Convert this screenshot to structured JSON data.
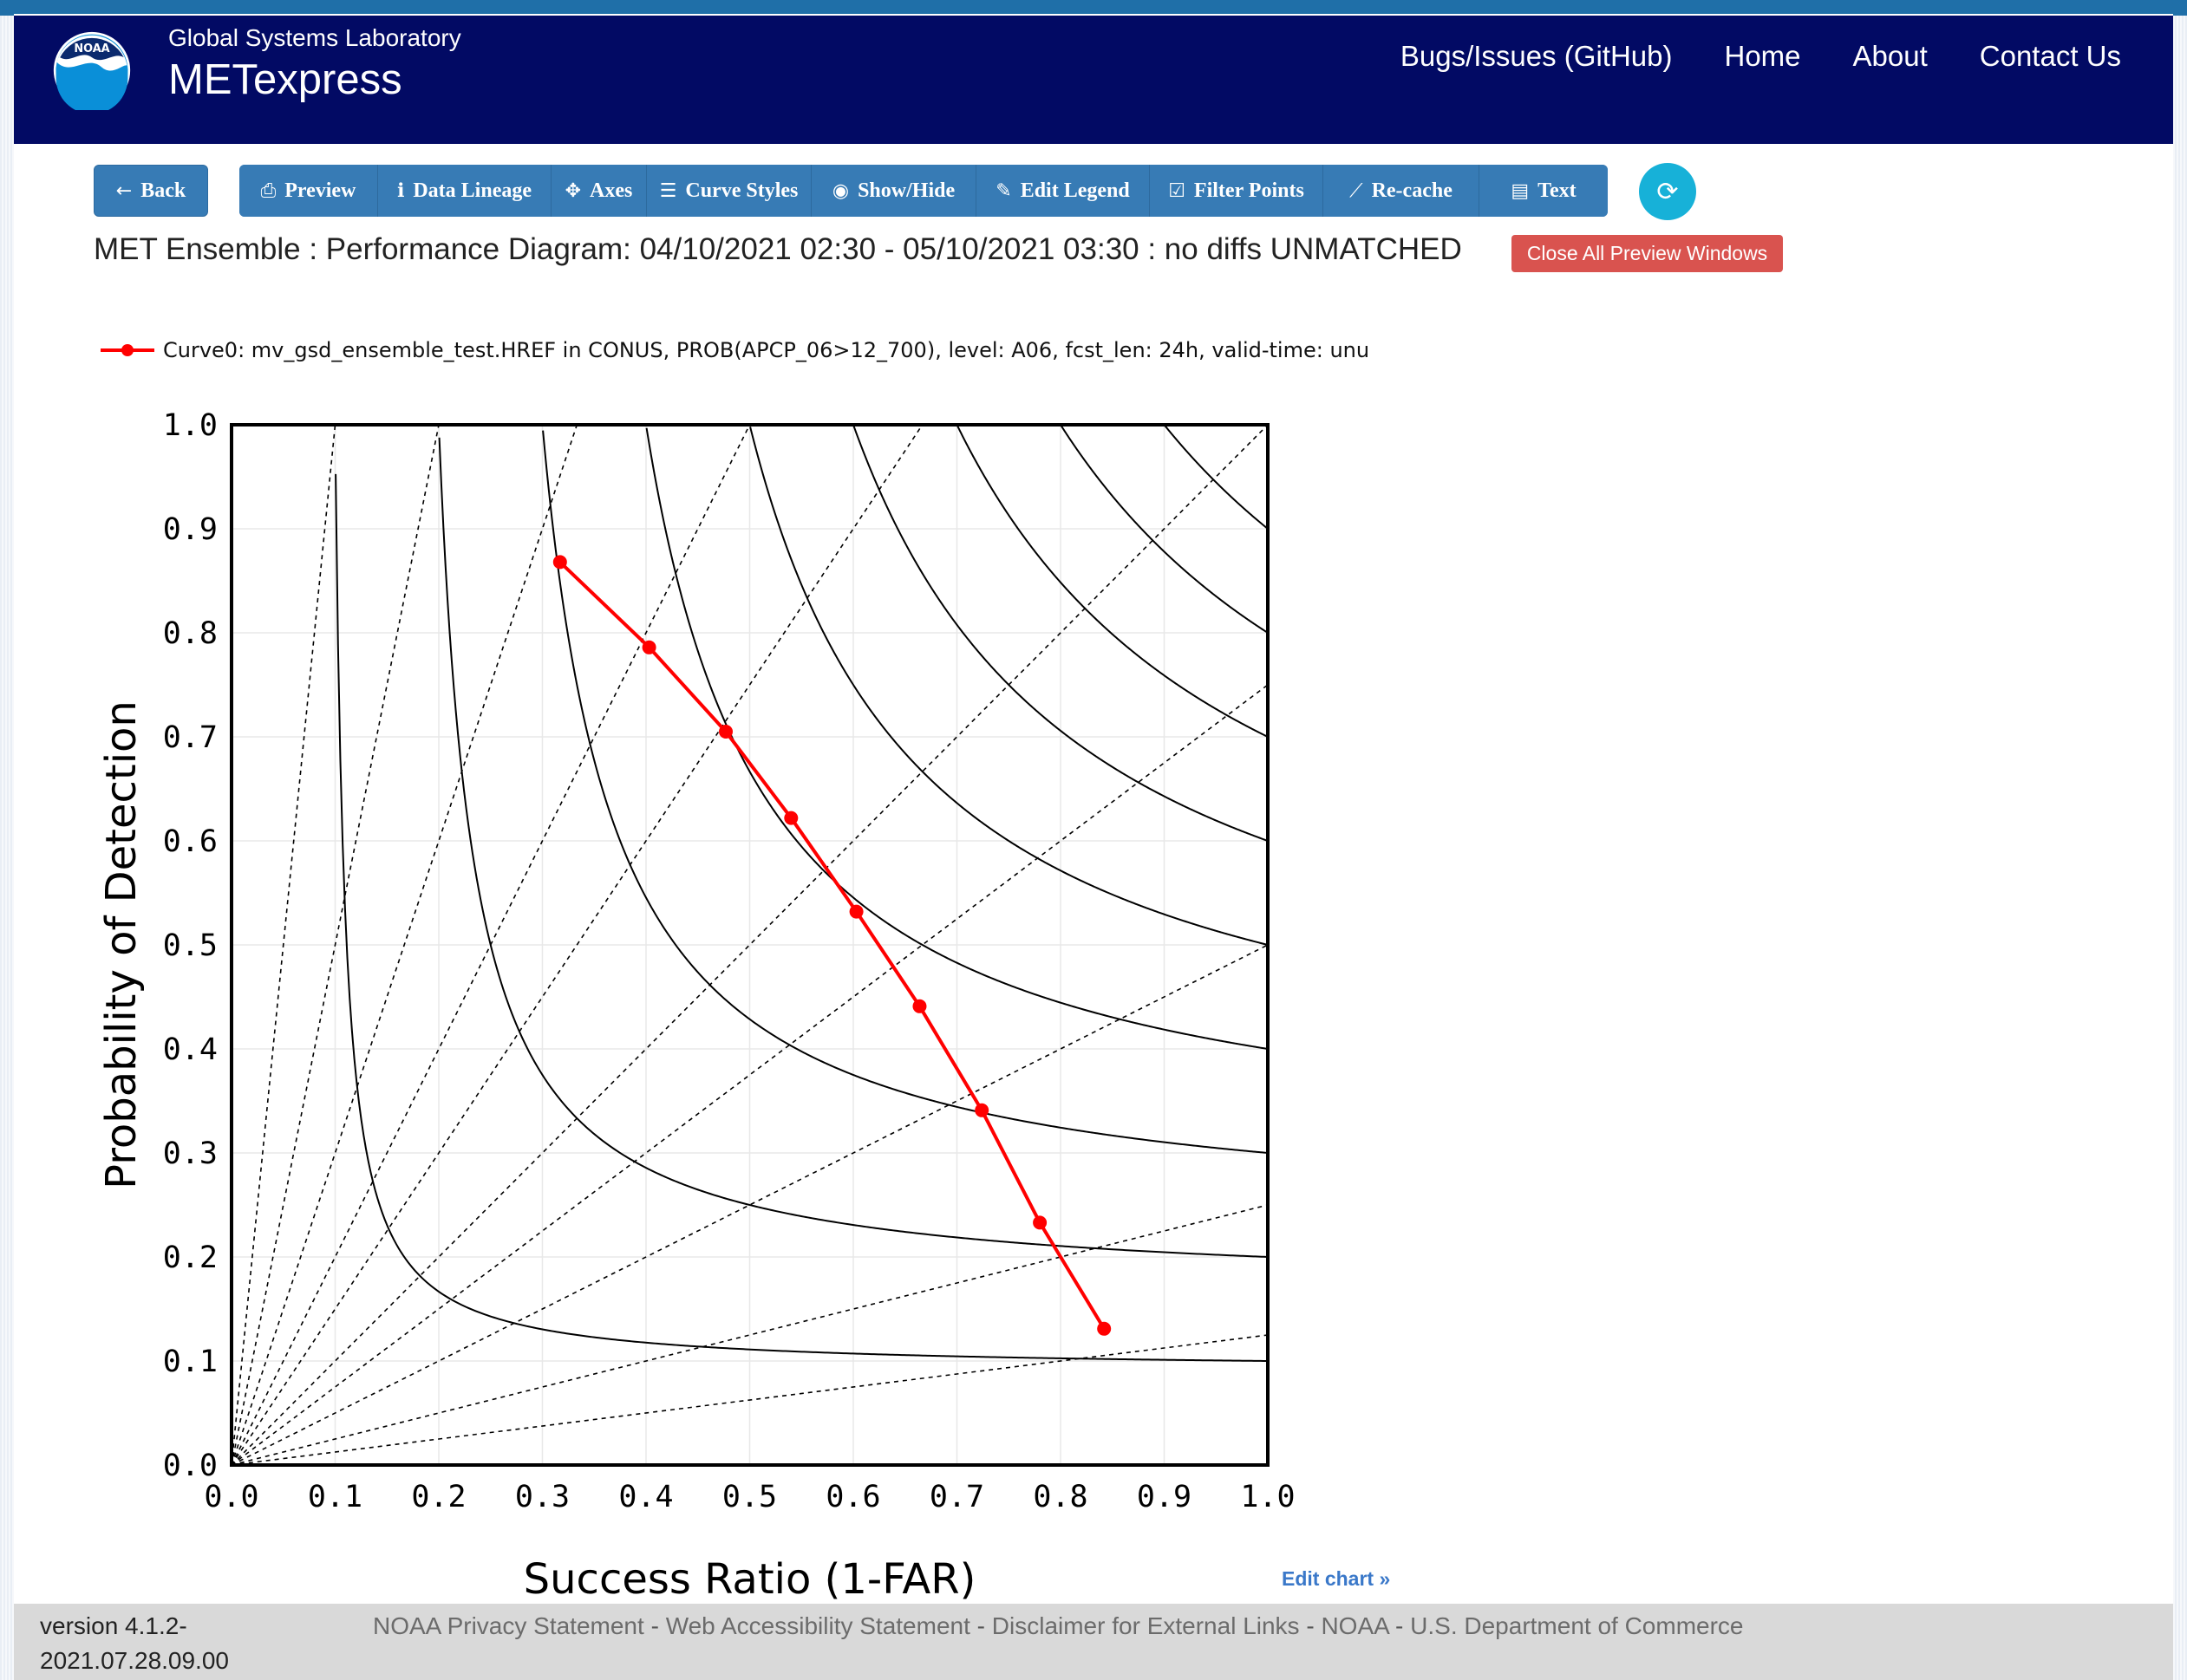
{
  "header": {
    "org_logo_text": "NOAA",
    "lab_name": "Global Systems Laboratory",
    "app_name": "METexpress",
    "nav": [
      "Bugs/Issues (GitHub)",
      "Home",
      "About",
      "Contact Us"
    ]
  },
  "toolbar": {
    "back_label": "Back",
    "buttons": [
      "Preview",
      "Data Lineage",
      "Axes",
      "Curve Styles",
      "Show/Hide",
      "Edit Legend",
      "Filter Points",
      "Re-cache",
      "Text"
    ]
  },
  "plot_title": "MET Ensemble : Performance Diagram: 04/10/2021 02:30 - 05/10/2021 03:30 : no diffs UNMATCHED",
  "close_windows_label": "Close All Preview Windows",
  "legend_label": "Curve0: mv_gsd_ensemble_test.HREF in CONUS, PROB(APCP_06>12_700), level: A06, fcst_len: 24h, valid-time: unu",
  "edit_chart_label": "Edit chart »",
  "footer": {
    "version_line1": "version 4.1.2-",
    "version_line2": "2021.07.28.09.00",
    "links": [
      "NOAA Privacy Statement",
      "Web Accessibility Statement",
      "Disclaimer for External Links",
      "NOAA",
      "U.S. Department of Commerce"
    ],
    "separator": " - "
  },
  "colors": {
    "header_bg": "#020a64",
    "button_bg": "#377bb5",
    "refresh_bg": "#17b1d8",
    "close_bg": "#d9534f",
    "series_color": "#ff0000"
  },
  "chart_data": {
    "type": "scatter",
    "subtype": "performance-diagram",
    "xlabel": "Success Ratio (1-FAR)",
    "ylabel": "Probability of Detection",
    "xlim": [
      0,
      1
    ],
    "ylim": [
      0,
      1
    ],
    "xticks": [
      "0.0",
      "0.1",
      "0.2",
      "0.3",
      "0.4",
      "0.5",
      "0.6",
      "0.7",
      "0.8",
      "0.9",
      "1.0"
    ],
    "yticks": [
      "0.0",
      "0.1",
      "0.2",
      "0.3",
      "0.4",
      "0.5",
      "0.6",
      "0.7",
      "0.8",
      "0.9",
      "1.0"
    ],
    "grid": true,
    "legend_position": "top-left",
    "csi_isolines": [
      0.1,
      0.2,
      0.3,
      0.4,
      0.5,
      0.6,
      0.7,
      0.8,
      0.9
    ],
    "bias_lines": [
      0.125,
      0.25,
      0.5,
      0.75,
      1,
      1.5,
      2,
      3,
      5,
      10
    ],
    "series": [
      {
        "name": "Curve0: mv_gsd_ensemble_test.HREF in CONUS, PROB(APCP_06>12_700), level: A06, fcst_len: 24h, valid-time: unu",
        "color": "#ff0000",
        "x": [
          0.317,
          0.403,
          0.477,
          0.54,
          0.603,
          0.664,
          0.724,
          0.78,
          0.842
        ],
        "y": [
          0.868,
          0.786,
          0.705,
          0.622,
          0.532,
          0.441,
          0.341,
          0.233,
          0.131
        ]
      }
    ]
  }
}
